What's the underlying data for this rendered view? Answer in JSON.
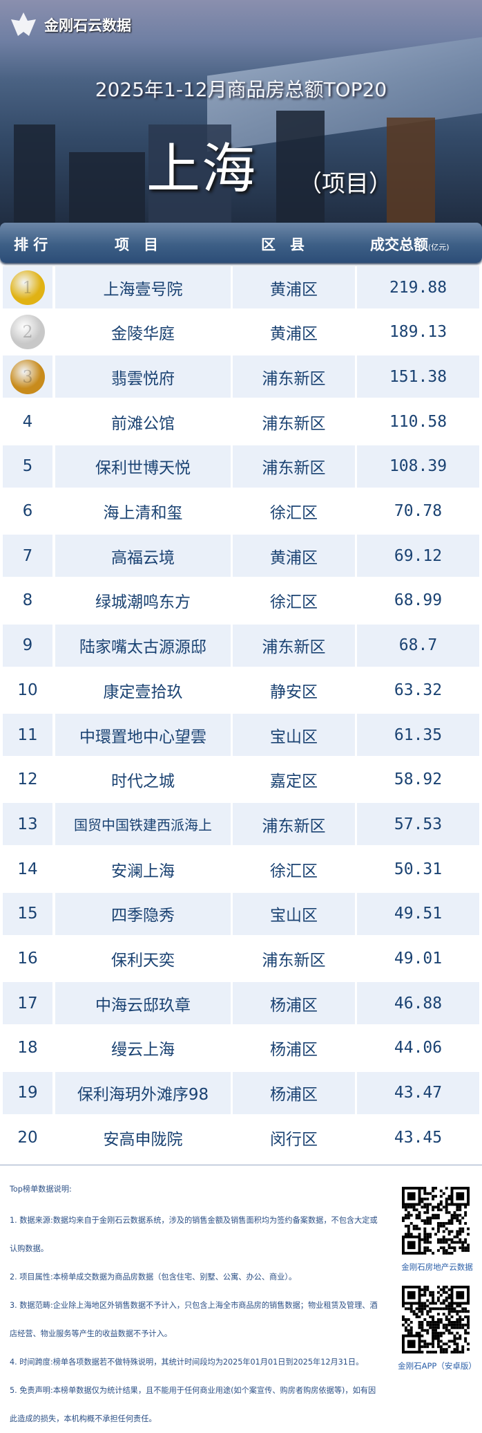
{
  "brand": {
    "name": "金刚石云数据"
  },
  "header": {
    "title": "2025年1-12月商品房总额TOP20",
    "city": "上海",
    "subtitle": "（项目）"
  },
  "table": {
    "columns": [
      "排 行",
      "项　目",
      "区　县",
      "成交总额"
    ],
    "unit": "(亿元)",
    "medal_colors": {
      "1": "#e0b214",
      "2": "#c8c8c8",
      "3": "#c88b1c"
    },
    "rows": [
      {
        "rank": "1",
        "project": "上海壹号院",
        "district": "黄浦区",
        "amount": "219.88"
      },
      {
        "rank": "2",
        "project": "金陵华庭",
        "district": "黄浦区",
        "amount": "189.13"
      },
      {
        "rank": "3",
        "project": "翡雲悦府",
        "district": "浦东新区",
        "amount": "151.38"
      },
      {
        "rank": "4",
        "project": "前滩公馆",
        "district": "浦东新区",
        "amount": "110.58"
      },
      {
        "rank": "5",
        "project": "保利世博天悦",
        "district": "浦东新区",
        "amount": "108.39"
      },
      {
        "rank": "6",
        "project": "海上清和玺",
        "district": "徐汇区",
        "amount": "70.78"
      },
      {
        "rank": "7",
        "project": "高福云境",
        "district": "黄浦区",
        "amount": "69.12"
      },
      {
        "rank": "8",
        "project": "绿城潮鸣东方",
        "district": "徐汇区",
        "amount": "68.99"
      },
      {
        "rank": "9",
        "project": "陆家嘴太古源源邸",
        "district": "浦东新区",
        "amount": "68.7"
      },
      {
        "rank": "10",
        "project": "康定壹拾玖",
        "district": "静安区",
        "amount": "63.32"
      },
      {
        "rank": "11",
        "project": "中環置地中心望雲",
        "district": "宝山区",
        "amount": "61.35"
      },
      {
        "rank": "12",
        "project": "时代之城",
        "district": "嘉定区",
        "amount": "58.92"
      },
      {
        "rank": "13",
        "project": "国贸中国铁建西派海上",
        "district": "浦东新区",
        "amount": "57.53"
      },
      {
        "rank": "14",
        "project": "安澜上海",
        "district": "徐汇区",
        "amount": "50.31"
      },
      {
        "rank": "15",
        "project": "四季隐秀",
        "district": "宝山区",
        "amount": "49.51"
      },
      {
        "rank": "16",
        "project": "保利天奕",
        "district": "浦东新区",
        "amount": "49.01"
      },
      {
        "rank": "17",
        "project": "中海云邸玖章",
        "district": "杨浦区",
        "amount": "46.88"
      },
      {
        "rank": "18",
        "project": "缦云上海",
        "district": "杨浦区",
        "amount": "44.06"
      },
      {
        "rank": "19",
        "project": "保利海玥外滩序98",
        "district": "杨浦区",
        "amount": "43.47"
      },
      {
        "rank": "20",
        "project": "安高申陇院",
        "district": "闵行区",
        "amount": "43.45"
      }
    ]
  },
  "notes": {
    "heading": "Top榜单数据说明:",
    "items": [
      "1. 数据来源:数据均来自于金刚石云数据系统，涉及的销售金额及销售面积均为签约备案数据，不包含大定或认购数据。",
      "2. 项目属性:本榜单成交数据为商品房数据（包含住宅、别墅、公寓、办公、商业）。",
      "3. 数据范畴:企业除上海地区外销售数据不予计入，只包含上海全市商品房的销售数据；物业租赁及管理、酒店经营、物业服务等产生的收益数据不予计入。",
      "4. 时间跨度:榜单各项数据若不做特殊说明，其统计时间段均为2025年01月01日到2025年12月31日。",
      "5. 免责声明:本榜单数据仅为统计结果，且不能用于任何商业用途(如个案宣传、购房者购房依据等)，如有因此造成的损失，本机构概不承担任何责任。"
    ]
  },
  "qr": {
    "label1": "金刚石房地产云数据",
    "label2": "金刚石APP（安卓版）"
  }
}
